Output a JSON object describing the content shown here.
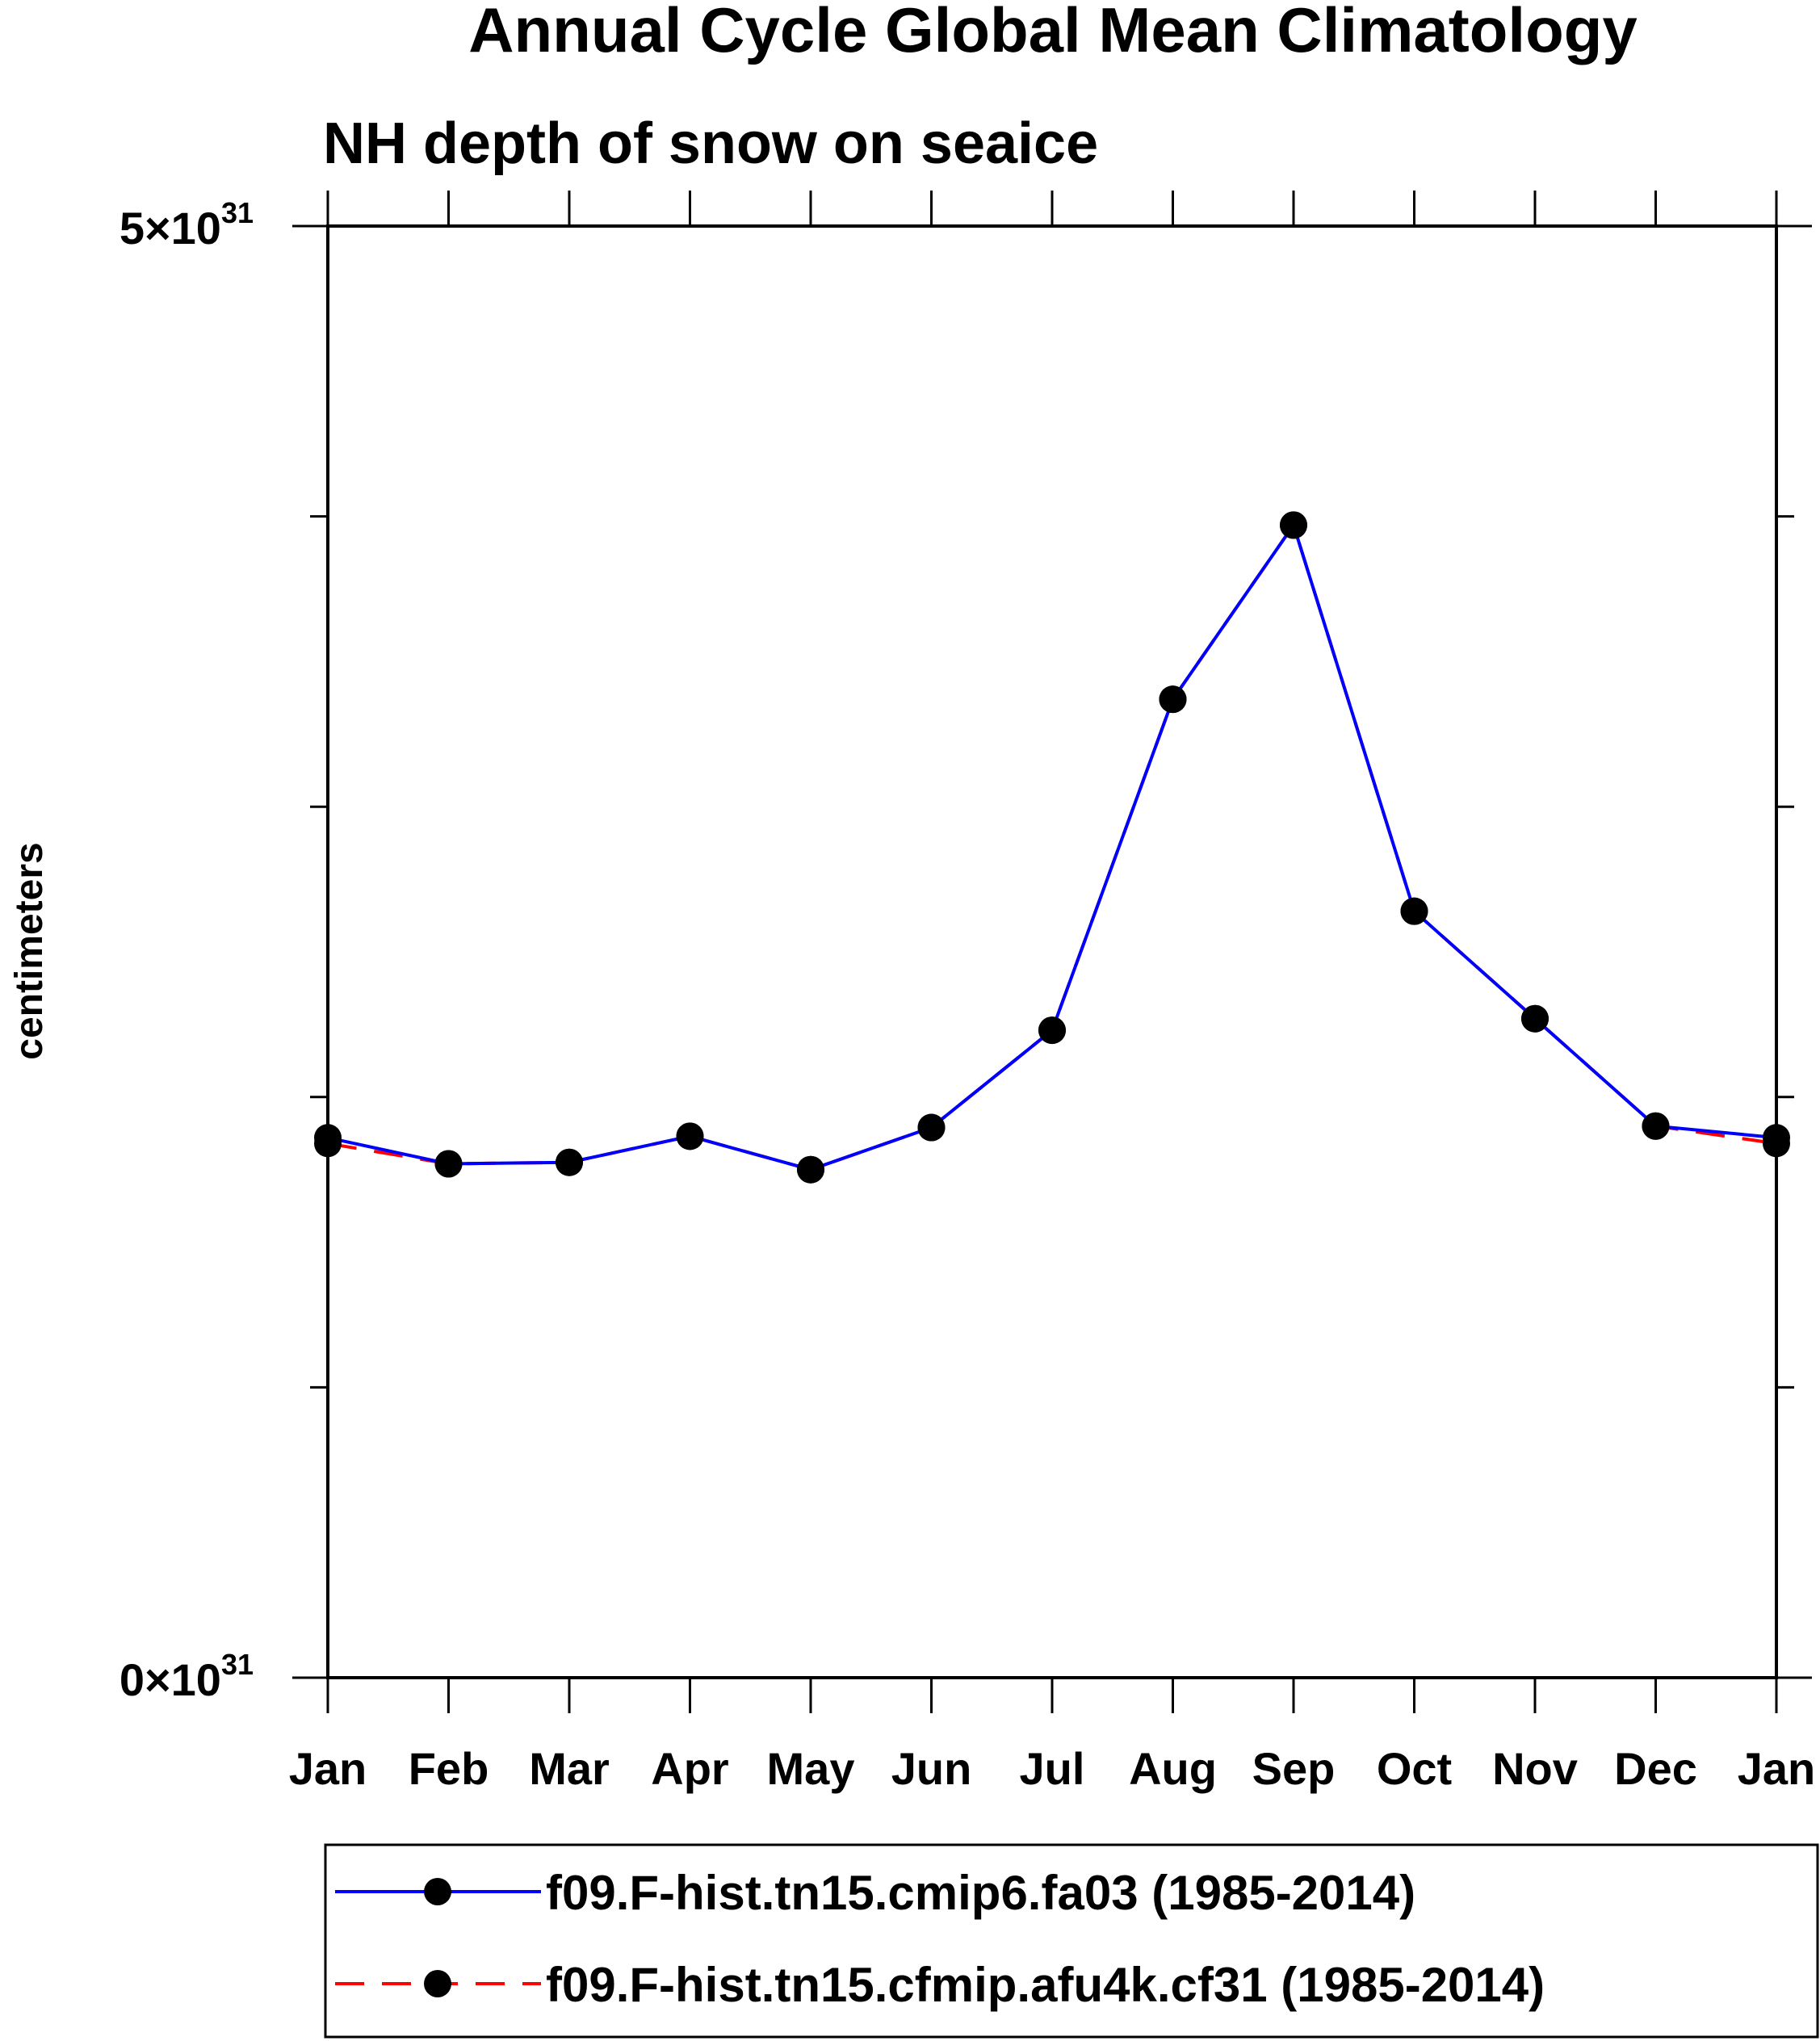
{
  "chart_data": {
    "type": "line",
    "title": "Annual Cycle Global Mean Climatology",
    "subtitle": "NH depth of snow on seaice",
    "xlabel": "",
    "ylabel": "centimeters",
    "categories": [
      "Jan",
      "Feb",
      "Mar",
      "Apr",
      "May",
      "Jun",
      "Jul",
      "Aug",
      "Sep",
      "Oct",
      "Nov",
      "Dec",
      "Jan"
    ],
    "ylim": [
      0,
      5e+31
    ],
    "yticks": [
      {
        "value": 0,
        "mantissa": "0",
        "exp": "31"
      },
      {
        "value": 5e+31,
        "mantissa": "5",
        "exp": "31"
      }
    ],
    "yminorticks": [
      1e+31,
      2e+31,
      3e+31,
      4e+31
    ],
    "grid": false,
    "legend_position": "bottom",
    "series": [
      {
        "name": "f09.F-hist.tn15.cmip6.fa03 (1985-2014)",
        "color": "#0000ff",
        "dash": "solid",
        "marker": "filled-circle",
        "values": [
          1.86e+31,
          1.77e+31,
          1.775e+31,
          1.865e+31,
          1.75e+31,
          1.895e+31,
          2.23e+31,
          3.37e+31,
          3.97e+31,
          2.64e+31,
          2.27e+31,
          1.9e+31,
          1.86e+31
        ]
      },
      {
        "name": "f09.F-hist.tn15.cfmip.afu4k.cf31 (1985-2014)",
        "color": "#ff0000",
        "dash": "dashed",
        "marker": "filled-circle",
        "values": [
          1.84e+31,
          1.77e+31,
          1.775e+31,
          1.865e+31,
          1.75e+31,
          1.895e+31,
          2.23e+31,
          3.37e+31,
          3.97e+31,
          2.64e+31,
          2.27e+31,
          1.9e+31,
          1.84e+31
        ]
      }
    ]
  }
}
